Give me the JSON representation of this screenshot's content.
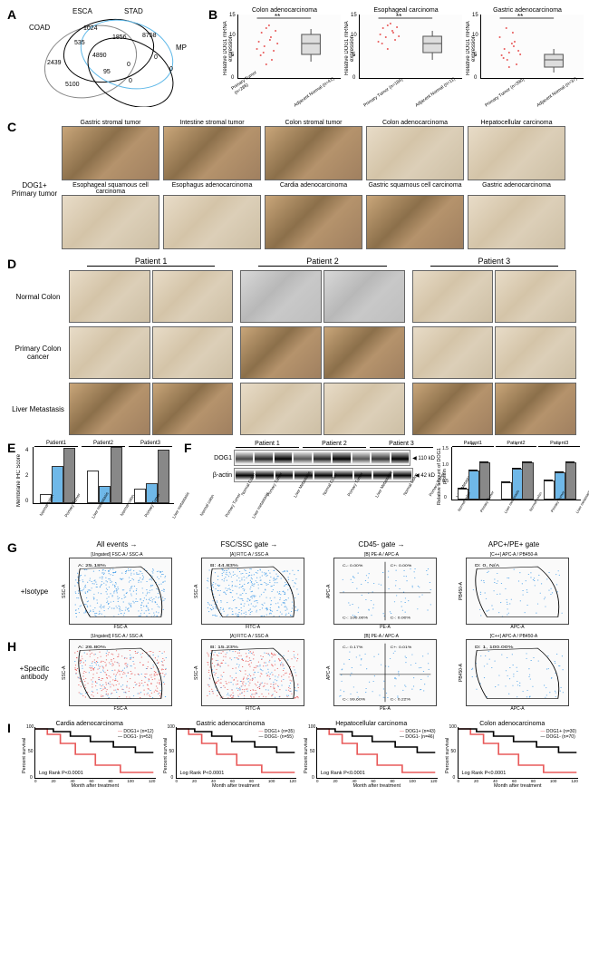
{
  "panelA": {
    "label": "A",
    "venn": {
      "circles": [
        "COAD",
        "ESCA",
        "STAD",
        "MP"
      ],
      "values": {
        "COAD_only": "2439",
        "ESCA_only": "1024",
        "STAD_only": "8758",
        "MP_only": "0",
        "COAD_ESCA": "535",
        "ESCA_STAD": "1856",
        "STAD_MP": "0",
        "COAD_ESCA_STAD": "4890",
        "COAD_MP": "5100",
        "center": "95",
        "ESCA_STAD_MP": "0",
        "other1": "0"
      },
      "stroke_colors": [
        "#888888",
        "#000000",
        "#5fb8e8",
        "#000000"
      ]
    }
  },
  "panelB": {
    "label": "B",
    "charts": [
      {
        "title": "Colon adenocarcinoma",
        "sig": "**",
        "groups": [
          "Primary Tumor (n=286)",
          "Adjacent Normal (n=41)"
        ]
      },
      {
        "title": "Esophageal carcinoma",
        "sig": "**",
        "groups": [
          "Primary Tumor (n=184)",
          "Adjacent Normal (n=11)"
        ]
      },
      {
        "title": "Gastric adenocarcinoma",
        "sig": "**",
        "groups": [
          "Primary Tumor (n=390)",
          "Adjacent Normal (n=37)"
        ]
      }
    ],
    "ylabel": "Relative DOG1 mRNA expression",
    "ymax": 15,
    "ytick": 5,
    "tumor_color": "#e85a5a",
    "normal_color": "#888888",
    "marker": "diamond"
  },
  "panelC": {
    "label": "C",
    "row_label": "DOG1+\nPrimary tumor",
    "row1": [
      "Gastric stromal tumor",
      "Intestine stromal tumor",
      "Colon stromal tumor",
      "Colon adenocarcinoma",
      "Hepatocellular carcinoma"
    ],
    "row2": [
      "Esophageal squamous cell carcinoma",
      "Esophagus adenocarcinoma",
      "Cardia adenocarcinoma",
      "Gastric squamous cell carcinoma",
      "Gastric adenocarcinoma"
    ]
  },
  "panelD": {
    "label": "D",
    "cols": [
      "Patient 1",
      "Patient 2",
      "Patient 3"
    ],
    "rows": [
      "Normal Colon",
      "Primary Colon cancer",
      "Liver Metastasis"
    ]
  },
  "panelE": {
    "label": "E",
    "patients": [
      "Patient1",
      "Patient2",
      "Patient3"
    ],
    "groups": [
      "Normal colon",
      "Primary Tumor",
      "Liver metastasis"
    ],
    "colors": [
      "#ffffff",
      "#6fb8e8",
      "#888888"
    ],
    "ylabel": "Membrane IHC Score",
    "ymax": 4,
    "values": [
      [
        0.5,
        2.5,
        3.8
      ],
      [
        2.2,
        1.1,
        3.9
      ],
      [
        0.9,
        1.3,
        3.7
      ]
    ]
  },
  "panelF": {
    "label": "F",
    "patients": [
      "Patient 1",
      "Patient 2",
      "Patient 3"
    ],
    "lanes": [
      "Normal Colon",
      "Primary Tumor",
      "Liver Metastasis",
      "Normal Colon",
      "Primary Tumor",
      "Liver Metastasis",
      "Normal Colon",
      "Primary Tumor",
      "Liver Metastasis"
    ],
    "bands": [
      "DOG1",
      "β-actin"
    ],
    "sizes": [
      "110 kD",
      "42 kD"
    ],
    "bar_ylabel": "Relative amount of DOG1 protein",
    "bar_ymax": 1.5,
    "sig_labels": [
      "***",
      "****",
      "*",
      "***",
      "*",
      "**"
    ],
    "bar_values": [
      [
        0.25,
        0.78,
        1.0
      ],
      [
        0.45,
        0.82,
        1.0
      ],
      [
        0.48,
        0.72,
        1.0
      ]
    ],
    "colors": [
      "#ffffff",
      "#6fb8e8",
      "#888888"
    ]
  },
  "panelG": {
    "label": "G",
    "row_label": "+Isotype",
    "steps": [
      "All events",
      "FSC/SSC gate",
      "CD45- gate",
      "APC+/PE+ gate"
    ],
    "axes": [
      {
        "x": "FSC-A",
        "y": "SSC-A",
        "title": "[Ungated] FSC-A / SSC-A",
        "gate": "A: 25.18%"
      },
      {
        "x": "FITC-A",
        "y": "SSC-A",
        "title": "[A] FITC-A / SSC-A",
        "gate": "B: 44.83%"
      },
      {
        "x": "PE-A",
        "y": "APC-A",
        "title": "[B] PE-A / APC-A",
        "quad": [
          "C-: 0.00%",
          "C+: 0.00%",
          "C-: 100.00%",
          "C-: 0.00%"
        ]
      },
      {
        "x": "APC-A",
        "y": "PB450-A",
        "title": "[C++] APC-A / PB450-A",
        "gate": "D: 0, N/A"
      }
    ]
  },
  "panelH": {
    "label": "H",
    "row_label": "+Specific antibody",
    "axes": [
      {
        "x": "FSC-A",
        "y": "SSC-A",
        "title": "[Ungated] FSC-A / SSC-A",
        "gate": "A: 26.80%"
      },
      {
        "x": "FITC-A",
        "y": "SSC-A",
        "title": "[A] FITC-A / SSC-A",
        "gate": "B: 15.23%"
      },
      {
        "x": "PE-A",
        "y": "APC-A",
        "title": "[B] PE-A / APC-A",
        "quad": [
          "C-: 0.17%",
          "C+: 0.01%",
          "C-: 99.60%",
          "C-: 0.22%"
        ]
      },
      {
        "x": "APC-A",
        "y": "PB450-A",
        "title": "[C++] APC-A / PB450-A",
        "gate": "D: 1, 100.00%"
      }
    ]
  },
  "panelI": {
    "label": "I",
    "charts": [
      {
        "title": "Cardia adenocarcinoma",
        "pos": "DOG1+ (n=12)",
        "neg": "DOG1- (n=53)",
        "p": "Log Rank P<0.0001"
      },
      {
        "title": "Gastric adenocarcinoma",
        "pos": "DOG1+ (n=35)",
        "neg": "DOG1- (n=55)",
        "p": "Log Rank P<0.0001"
      },
      {
        "title": "Hepatocellular carcinoma",
        "pos": "DOG1+ (n=43)",
        "neg": "DOG1- (n=46)",
        "p": "Log Rank P<0.0001"
      },
      {
        "title": "Colon adenocarcinoma",
        "pos": "DOG1+ (n=30)",
        "neg": "DOG1- (n=70)",
        "p": "Log Rank P<0.0001"
      }
    ],
    "ylabel": "Percent survival",
    "xlabel": "Month after treatment",
    "xticks": [
      0,
      20,
      40,
      60,
      80,
      100,
      120
    ],
    "yticks": [
      0,
      50,
      100
    ],
    "pos_color": "#e85a5a",
    "neg_color": "#000000"
  }
}
